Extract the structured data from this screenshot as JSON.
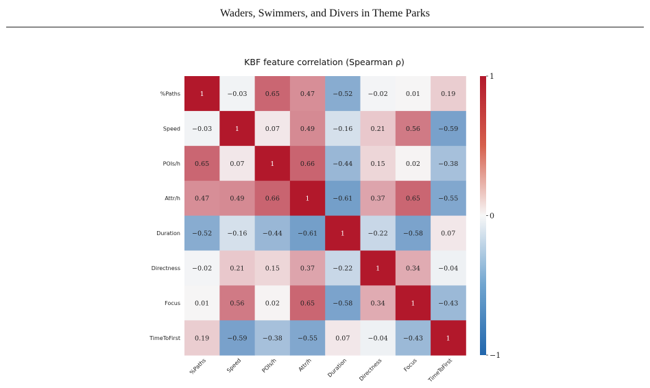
{
  "header": {
    "title": "Waders, Swimmers, and Divers in Theme Parks"
  },
  "chart_data": {
    "type": "heatmap",
    "title": "KBF feature correlation (Spearman ρ)",
    "rows": [
      "%Paths",
      "Speed",
      "POIs/h",
      "Attr/h",
      "Duration",
      "Directness",
      "Focus",
      "TimeToFirst"
    ],
    "columns": [
      "%Paths",
      "Speed",
      "POIs/h",
      "Attr/h",
      "Duration",
      "Directness",
      "Focus",
      "TimeToFirst"
    ],
    "values": [
      [
        1,
        -0.03,
        0.65,
        0.47,
        -0.52,
        -0.02,
        0.01,
        0.19
      ],
      [
        -0.03,
        1,
        0.07,
        0.49,
        -0.16,
        0.21,
        0.56,
        -0.59
      ],
      [
        0.65,
        0.07,
        1,
        0.66,
        -0.44,
        0.15,
        0.02,
        -0.38
      ],
      [
        0.47,
        0.49,
        0.66,
        1,
        -0.61,
        0.37,
        0.65,
        -0.55
      ],
      [
        -0.52,
        -0.16,
        -0.44,
        -0.61,
        1,
        -0.22,
        -0.58,
        0.07
      ],
      [
        -0.02,
        0.21,
        0.15,
        0.37,
        -0.22,
        1,
        0.34,
        -0.04
      ],
      [
        0.01,
        0.56,
        0.02,
        0.65,
        -0.58,
        0.34,
        1,
        -0.43
      ],
      [
        0.19,
        -0.59,
        -0.38,
        -0.55,
        0.07,
        -0.04,
        -0.43,
        1
      ]
    ],
    "value_range": [
      -1,
      1
    ],
    "colormap": {
      "negative": "#2166ac",
      "neutral": "#f7f7f7",
      "positive": "#b2182b"
    },
    "colorbar": {
      "ticks": [
        1,
        0,
        -1
      ],
      "tick_labels": [
        "1",
        "0",
        "−1"
      ],
      "placement": "right"
    },
    "grid": false
  }
}
